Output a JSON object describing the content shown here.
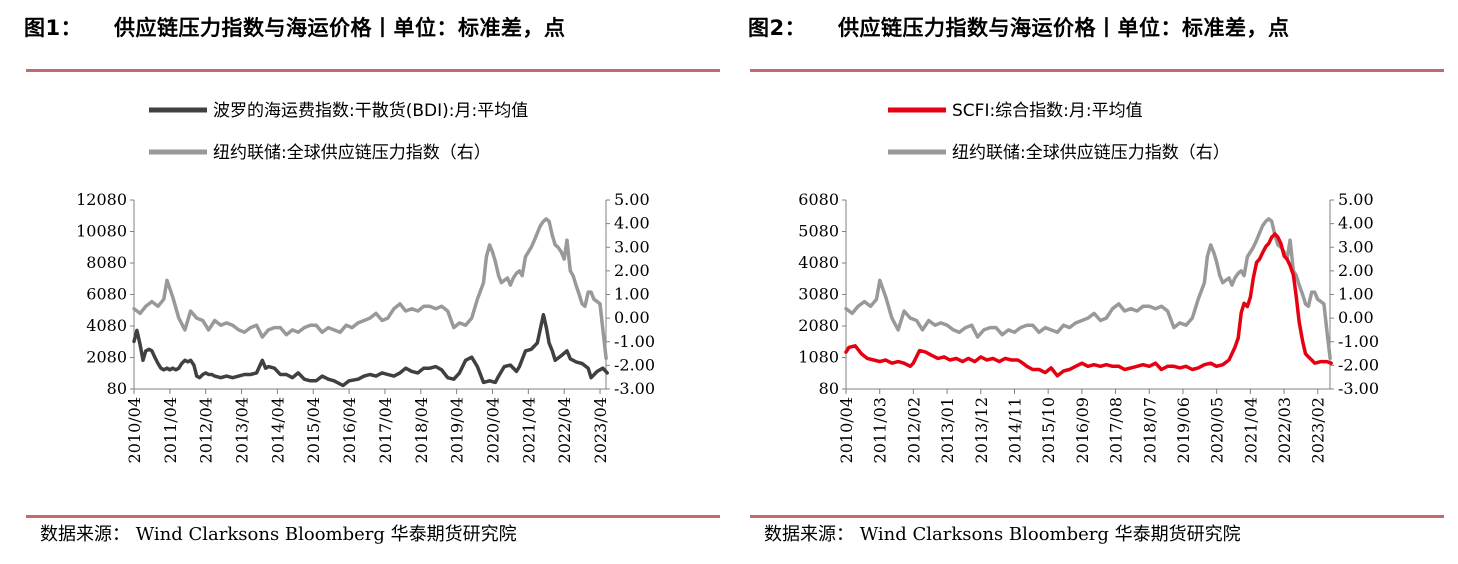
{
  "fig1": {
    "label": "图1：",
    "title": "供应链压力指数与海运价格丨单位：标准差，点",
    "source": "数据来源：  Wind Clarksons Bloomberg 华泰期货研究院"
  },
  "fig2": {
    "label": "图2：",
    "title": "供应链压力指数与海运价格丨单位：标准差，点",
    "source": "数据来源：  Wind Clarksons Bloomberg 华泰期货研究院"
  },
  "chart_data": [
    {
      "type": "line",
      "legend_placement": "top-left",
      "grid": false,
      "x_ticks": [
        "2010/04",
        "2011/04",
        "2012/04",
        "2013/04",
        "2014/04",
        "2015/04",
        "2016/04",
        "2017/04",
        "2018/04",
        "2019/04",
        "2020/04",
        "2021/04",
        "2022/04",
        "2023/04"
      ],
      "x_range": [
        "2010/04",
        "2023/06"
      ],
      "ylim_left": [
        80,
        12080
      ],
      "y_ticks_left": [
        "80",
        "2080",
        "4080",
        "6080",
        "8080",
        "10080",
        "12080"
      ],
      "ylim_right": [
        -3.0,
        5.0
      ],
      "y_ticks_right": [
        "-3.00",
        "-2.00",
        "-1.00",
        "0.00",
        "1.00",
        "2.00",
        "3.00",
        "4.00",
        "5.00"
      ],
      "series": [
        {
          "name": "波罗的海运费指数:干散货(BDI):月:平均值",
          "axis": "left",
          "color": "#404040",
          "x": [
            2010.25,
            2010.33,
            2010.42,
            2010.5,
            2010.58,
            2010.67,
            2010.75,
            2010.83,
            2010.92,
            2011.0,
            2011.08,
            2011.17,
            2011.25,
            2011.33,
            2011.42,
            2011.5,
            2011.58,
            2011.67,
            2011.75,
            2011.83,
            2011.92,
            2012.0,
            2012.08,
            2012.17,
            2012.25,
            2012.33,
            2012.42,
            2012.5,
            2012.67,
            2012.83,
            2013.0,
            2013.17,
            2013.33,
            2013.5,
            2013.67,
            2013.83,
            2013.92,
            2014.0,
            2014.17,
            2014.33,
            2014.5,
            2014.67,
            2014.83,
            2015.0,
            2015.17,
            2015.33,
            2015.5,
            2015.67,
            2015.83,
            2016.0,
            2016.08,
            2016.25,
            2016.5,
            2016.67,
            2016.83,
            2017.0,
            2017.17,
            2017.33,
            2017.5,
            2017.67,
            2017.83,
            2018.0,
            2018.17,
            2018.33,
            2018.5,
            2018.67,
            2018.83,
            2019.0,
            2019.17,
            2019.33,
            2019.5,
            2019.67,
            2019.83,
            2020.0,
            2020.17,
            2020.33,
            2020.42,
            2020.58,
            2020.75,
            2020.92,
            2021.0,
            2021.17,
            2021.33,
            2021.5,
            2021.67,
            2021.75,
            2021.83,
            2021.92,
            2022.0,
            2022.17,
            2022.33,
            2022.42,
            2022.58,
            2022.75,
            2022.92,
            2023.0,
            2023.17,
            2023.33,
            2023.45
          ],
          "values": [
            3100,
            3800,
            2900,
            1900,
            2500,
            2600,
            2500,
            2100,
            1700,
            1400,
            1300,
            1400,
            1300,
            1400,
            1300,
            1400,
            1700,
            1900,
            1800,
            1900,
            1600,
            900,
            800,
            1000,
            1100,
            1000,
            1000,
            900,
            800,
            900,
            800,
            900,
            1000,
            1000,
            1100,
            1900,
            1400,
            1500,
            1400,
            1000,
            1000,
            800,
            1100,
            700,
            600,
            600,
            900,
            700,
            600,
            400,
            300,
            600,
            700,
            900,
            1000,
            900,
            1100,
            1000,
            900,
            1100,
            1400,
            1200,
            1100,
            1400,
            1400,
            1500,
            1300,
            800,
            700,
            1100,
            1900,
            2100,
            1500,
            500,
            600,
            500,
            900,
            1500,
            1600,
            1200,
            1500,
            2500,
            2600,
            3000,
            4800,
            4000,
            3000,
            2500,
            1900,
            2200,
            2500,
            2000,
            1800,
            1700,
            1400,
            800,
            1200,
            1400,
            1100
          ]
        },
        {
          "name": "纽约联储:全球供应链压力指数（右）",
          "axis": "right",
          "color": "#999999",
          "x": [
            2010.25,
            2010.42,
            2010.58,
            2010.75,
            2010.92,
            2011.08,
            2011.17,
            2011.33,
            2011.5,
            2011.67,
            2011.83,
            2012.0,
            2012.17,
            2012.33,
            2012.5,
            2012.67,
            2012.83,
            2013.0,
            2013.17,
            2013.33,
            2013.5,
            2013.67,
            2013.83,
            2014.0,
            2014.17,
            2014.33,
            2014.5,
            2014.67,
            2014.83,
            2015.0,
            2015.17,
            2015.33,
            2015.5,
            2015.67,
            2015.83,
            2016.0,
            2016.17,
            2016.33,
            2016.5,
            2016.67,
            2016.83,
            2017.0,
            2017.17,
            2017.33,
            2017.5,
            2017.67,
            2017.83,
            2018.0,
            2018.17,
            2018.33,
            2018.5,
            2018.67,
            2018.83,
            2019.0,
            2019.17,
            2019.33,
            2019.5,
            2019.67,
            2019.83,
            2020.0,
            2020.08,
            2020.17,
            2020.25,
            2020.33,
            2020.42,
            2020.5,
            2020.58,
            2020.67,
            2020.75,
            2020.83,
            2020.92,
            2021.0,
            2021.08,
            2021.17,
            2021.25,
            2021.33,
            2021.42,
            2021.5,
            2021.58,
            2021.67,
            2021.75,
            2021.83,
            2021.92,
            2022.0,
            2022.08,
            2022.17,
            2022.25,
            2022.33,
            2022.42,
            2022.5,
            2022.58,
            2022.67,
            2022.75,
            2022.83,
            2022.92,
            2023.0,
            2023.08,
            2023.17,
            2023.25,
            2023.33,
            2023.42
          ],
          "values": [
            0.4,
            0.2,
            0.5,
            0.7,
            0.5,
            0.8,
            1.6,
            0.9,
            0.0,
            -0.5,
            0.3,
            0.0,
            -0.1,
            -0.5,
            -0.1,
            -0.3,
            -0.2,
            -0.3,
            -0.5,
            -0.6,
            -0.4,
            -0.3,
            -0.8,
            -0.5,
            -0.4,
            -0.4,
            -0.7,
            -0.5,
            -0.6,
            -0.4,
            -0.3,
            -0.3,
            -0.6,
            -0.4,
            -0.5,
            -0.6,
            -0.3,
            -0.4,
            -0.2,
            -0.1,
            0.0,
            0.2,
            -0.1,
            0.0,
            0.4,
            0.6,
            0.3,
            0.4,
            0.3,
            0.5,
            0.5,
            0.4,
            0.5,
            0.3,
            -0.4,
            -0.2,
            -0.3,
            0.0,
            0.8,
            1.5,
            2.6,
            3.1,
            2.8,
            2.4,
            1.8,
            1.5,
            1.6,
            1.7,
            1.4,
            1.7,
            1.9,
            2.0,
            1.8,
            2.6,
            2.8,
            3.0,
            3.3,
            3.6,
            3.9,
            4.1,
            4.2,
            4.1,
            3.5,
            3.1,
            3.0,
            2.8,
            2.5,
            3.3,
            2.0,
            1.8,
            1.4,
            1.0,
            0.6,
            0.5,
            1.1,
            1.1,
            0.8,
            0.7,
            0.6,
            -0.5,
            -1.7
          ]
        }
      ]
    },
    {
      "type": "line",
      "legend_placement": "top-left",
      "grid": false,
      "x_ticks": [
        "2010/04",
        "2011/03",
        "2012/02",
        "2013/01",
        "2013/12",
        "2014/11",
        "2015/10",
        "2016/09",
        "2017/08",
        "2018/07",
        "2019/06",
        "2020/05",
        "2021/04",
        "2022/03",
        "2023/02"
      ],
      "x_range": [
        "2010/04",
        "2023/06"
      ],
      "ylim_left": [
        80,
        6080
      ],
      "y_ticks_left": [
        "80",
        "1080",
        "2080",
        "3080",
        "4080",
        "5080",
        "6080"
      ],
      "ylim_right": [
        -3.0,
        5.0
      ],
      "y_ticks_right": [
        "-3.00",
        "-2.00",
        "-1.00",
        "0.00",
        "1.00",
        "2.00",
        "3.00",
        "4.00",
        "5.00"
      ],
      "series": [
        {
          "name": "SCFI:综合指数:月:平均值",
          "axis": "left",
          "color": "#e60012",
          "x": [
            2010.25,
            2010.33,
            2010.5,
            2010.67,
            2010.83,
            2011.0,
            2011.17,
            2011.33,
            2011.5,
            2011.67,
            2011.83,
            2012.0,
            2012.08,
            2012.25,
            2012.42,
            2012.58,
            2012.75,
            2012.92,
            2013.08,
            2013.25,
            2013.42,
            2013.58,
            2013.75,
            2013.92,
            2014.08,
            2014.25,
            2014.42,
            2014.58,
            2014.75,
            2014.92,
            2015.0,
            2015.17,
            2015.33,
            2015.5,
            2015.67,
            2015.83,
            2016.0,
            2016.17,
            2016.33,
            2016.5,
            2016.67,
            2016.83,
            2017.0,
            2017.17,
            2017.33,
            2017.5,
            2017.67,
            2017.83,
            2018.0,
            2018.17,
            2018.33,
            2018.5,
            2018.67,
            2018.83,
            2019.0,
            2019.17,
            2019.33,
            2019.5,
            2019.67,
            2019.83,
            2020.0,
            2020.17,
            2020.33,
            2020.5,
            2020.67,
            2020.83,
            2020.92,
            2021.0,
            2021.08,
            2021.17,
            2021.25,
            2021.33,
            2021.42,
            2021.5,
            2021.58,
            2021.67,
            2021.75,
            2021.83,
            2021.92,
            2022.0,
            2022.08,
            2022.17,
            2022.25,
            2022.33,
            2022.42,
            2022.5,
            2022.58,
            2022.67,
            2022.75,
            2022.83,
            2022.92,
            2023.0,
            2023.17,
            2023.33,
            2023.45
          ],
          "values": [
            1250,
            1400,
            1450,
            1200,
            1050,
            1000,
            950,
            1000,
            900,
            950,
            900,
            800,
            900,
            1300,
            1250,
            1150,
            1050,
            1100,
            1000,
            1050,
            950,
            1050,
            950,
            1100,
            1000,
            1050,
            950,
            1050,
            1000,
            1000,
            950,
            800,
            700,
            700,
            600,
            750,
            500,
            650,
            700,
            800,
            900,
            800,
            850,
            800,
            850,
            800,
            800,
            700,
            750,
            800,
            850,
            800,
            900,
            700,
            800,
            800,
            750,
            800,
            700,
            750,
            850,
            900,
            800,
            850,
            1000,
            1400,
            1700,
            2500,
            2800,
            2700,
            3000,
            3600,
            4100,
            4200,
            4400,
            4600,
            4700,
            4900,
            5000,
            4900,
            4700,
            4300,
            4200,
            4000,
            3700,
            3000,
            2200,
            1600,
            1200,
            1100,
            1000,
            900,
            950,
            950,
            900
          ]
        },
        {
          "name": "纽约联储:全球供应链压力指数（右）",
          "axis": "right",
          "color": "#999999",
          "x": [
            2010.25,
            2010.42,
            2010.58,
            2010.75,
            2010.92,
            2011.08,
            2011.17,
            2011.33,
            2011.5,
            2011.67,
            2011.83,
            2012.0,
            2012.17,
            2012.33,
            2012.5,
            2012.67,
            2012.83,
            2013.0,
            2013.17,
            2013.33,
            2013.5,
            2013.67,
            2013.83,
            2014.0,
            2014.17,
            2014.33,
            2014.5,
            2014.67,
            2014.83,
            2015.0,
            2015.17,
            2015.33,
            2015.5,
            2015.67,
            2015.83,
            2016.0,
            2016.17,
            2016.33,
            2016.5,
            2016.67,
            2016.83,
            2017.0,
            2017.17,
            2017.33,
            2017.5,
            2017.67,
            2017.83,
            2018.0,
            2018.17,
            2018.33,
            2018.5,
            2018.67,
            2018.83,
            2019.0,
            2019.17,
            2019.33,
            2019.5,
            2019.67,
            2019.83,
            2020.0,
            2020.08,
            2020.17,
            2020.25,
            2020.33,
            2020.42,
            2020.5,
            2020.58,
            2020.67,
            2020.75,
            2020.83,
            2020.92,
            2021.0,
            2021.08,
            2021.17,
            2021.25,
            2021.33,
            2021.42,
            2021.5,
            2021.58,
            2021.67,
            2021.75,
            2021.83,
            2021.92,
            2022.0,
            2022.08,
            2022.17,
            2022.25,
            2022.33,
            2022.42,
            2022.5,
            2022.58,
            2022.67,
            2022.75,
            2022.83,
            2022.92,
            2023.0,
            2023.08,
            2023.17,
            2023.25,
            2023.33,
            2023.42
          ],
          "values": [
            0.4,
            0.2,
            0.5,
            0.7,
            0.5,
            0.8,
            1.6,
            0.9,
            0.0,
            -0.5,
            0.3,
            0.0,
            -0.1,
            -0.5,
            -0.1,
            -0.3,
            -0.2,
            -0.3,
            -0.5,
            -0.6,
            -0.4,
            -0.3,
            -0.8,
            -0.5,
            -0.4,
            -0.4,
            -0.7,
            -0.5,
            -0.6,
            -0.4,
            -0.3,
            -0.3,
            -0.6,
            -0.4,
            -0.5,
            -0.6,
            -0.3,
            -0.4,
            -0.2,
            -0.1,
            0.0,
            0.2,
            -0.1,
            0.0,
            0.4,
            0.6,
            0.3,
            0.4,
            0.3,
            0.5,
            0.5,
            0.4,
            0.5,
            0.3,
            -0.4,
            -0.2,
            -0.3,
            0.0,
            0.8,
            1.5,
            2.6,
            3.1,
            2.8,
            2.4,
            1.8,
            1.5,
            1.6,
            1.7,
            1.4,
            1.7,
            1.9,
            2.0,
            1.8,
            2.6,
            2.8,
            3.0,
            3.3,
            3.6,
            3.9,
            4.1,
            4.2,
            4.1,
            3.5,
            3.1,
            3.0,
            2.8,
            2.5,
            3.3,
            2.0,
            1.8,
            1.4,
            1.0,
            0.6,
            0.5,
            1.1,
            1.1,
            0.8,
            0.7,
            0.6,
            -0.5,
            -1.7
          ]
        }
      ]
    }
  ]
}
